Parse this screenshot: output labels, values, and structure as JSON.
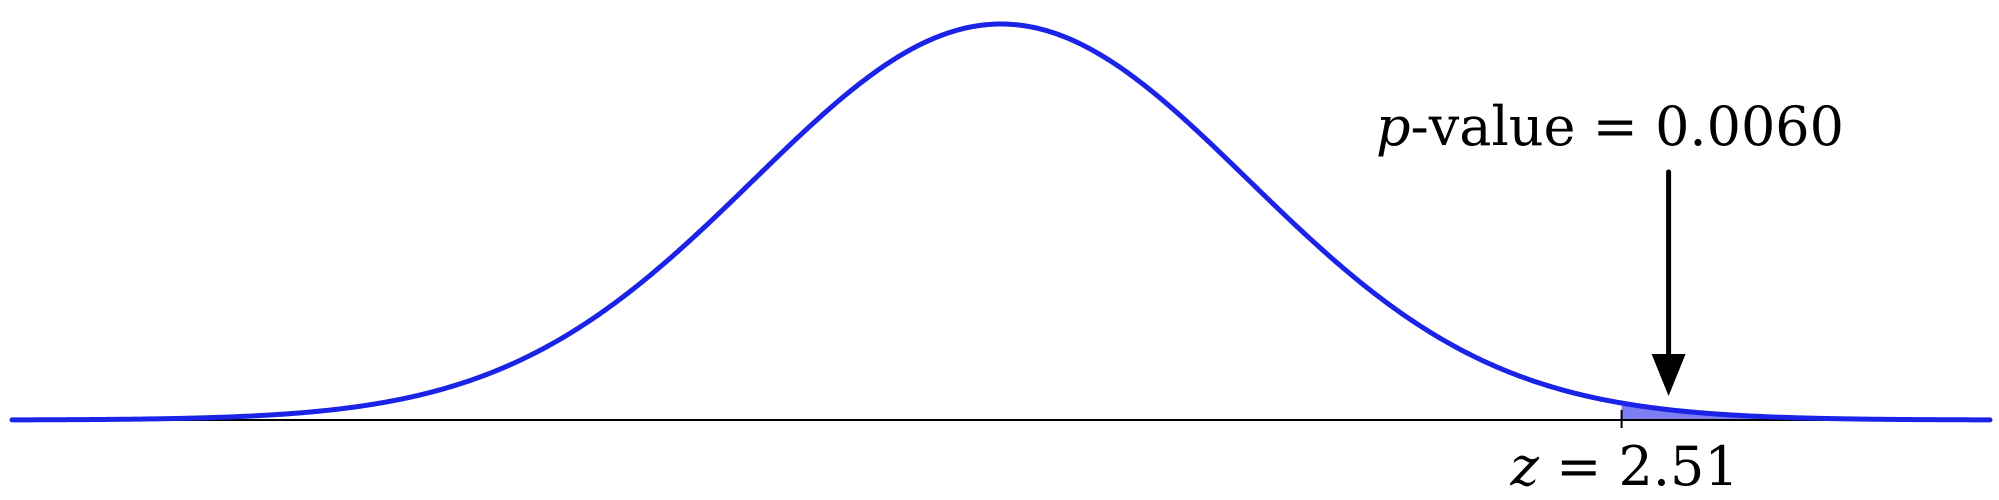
{
  "diagram": {
    "distribution": "standard-normal",
    "x_range": [
      -4,
      4
    ],
    "curve_color": "#1a23e6",
    "tail_fill_color": "#7b7df0",
    "axis_color": "#000000",
    "arrow_color": "#000000",
    "annotation": {
      "p_symbol": "p",
      "p_rest": "-value = 0.0060"
    },
    "marker": {
      "z_value": 2.51,
      "z_symbol": "z",
      "z_rest": " = 2.51"
    }
  }
}
